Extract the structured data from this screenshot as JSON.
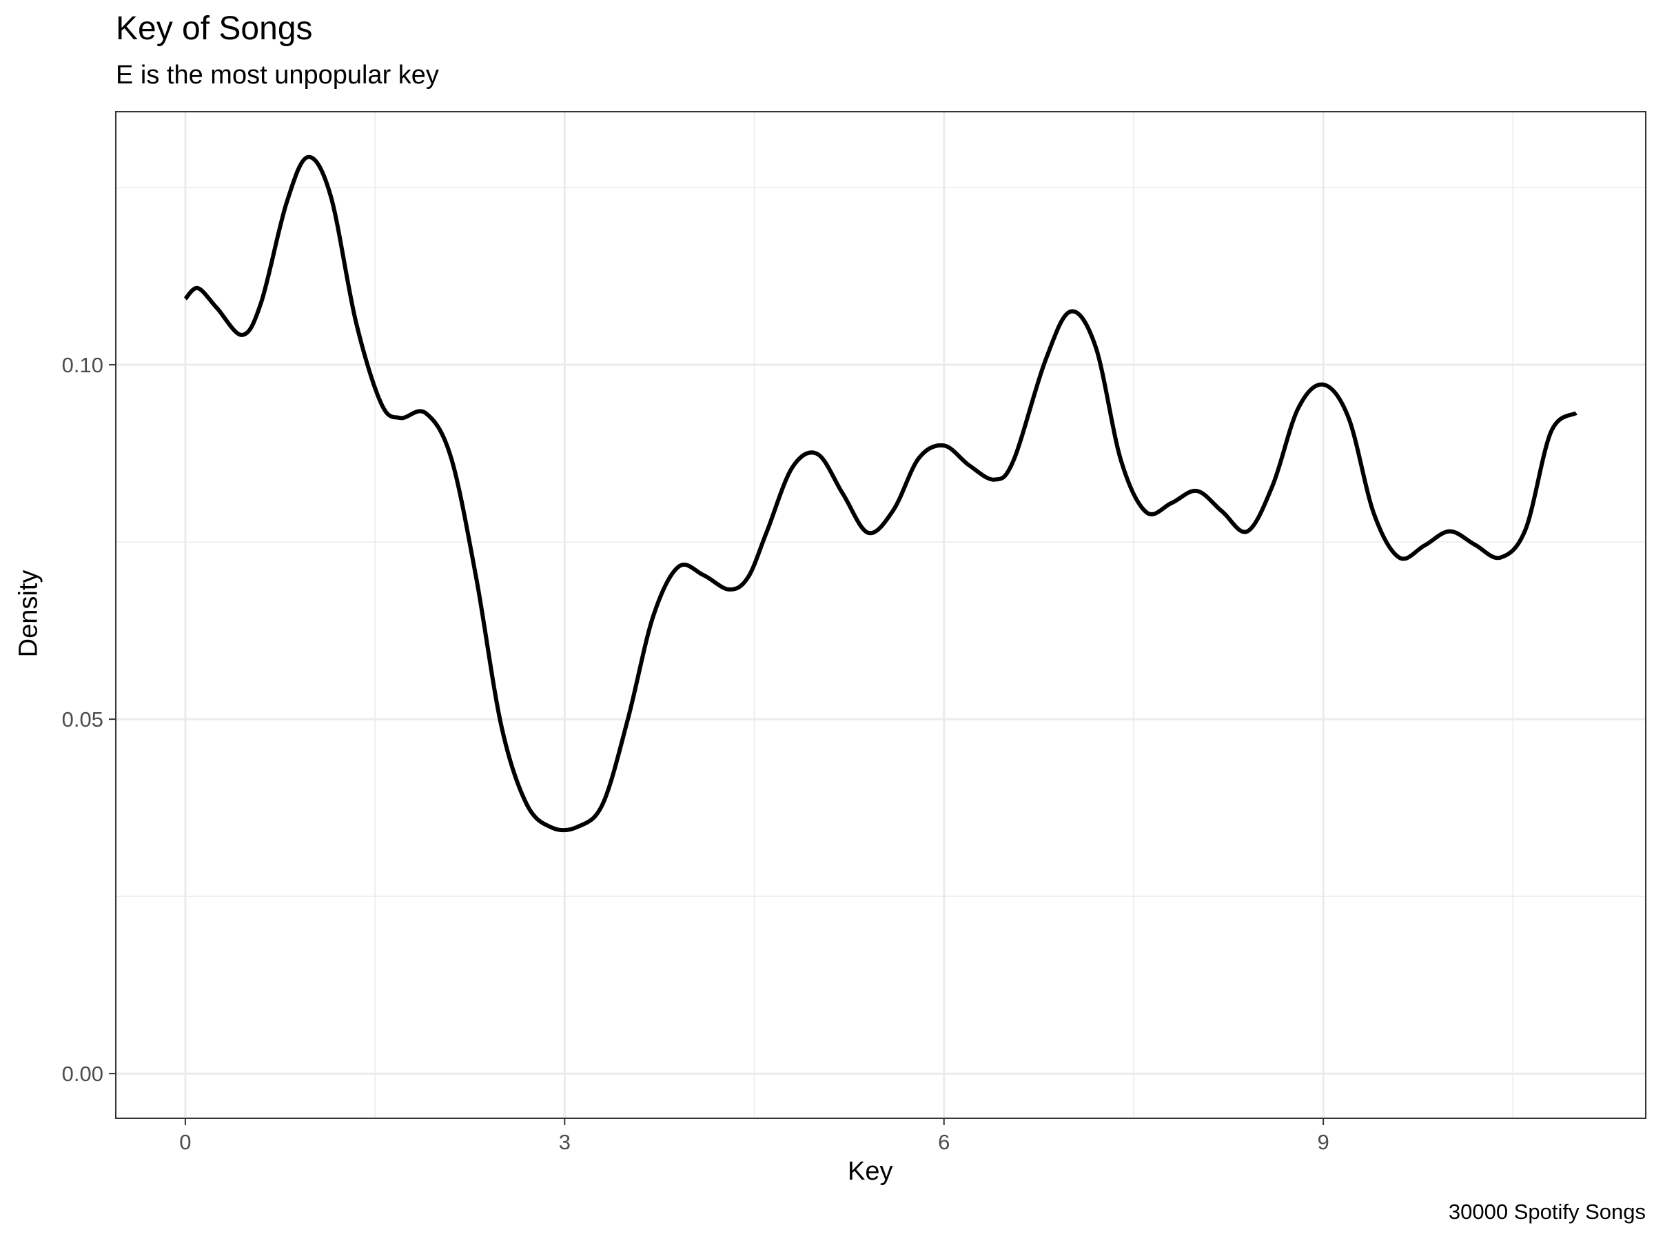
{
  "chart_data": {
    "type": "line",
    "title": "Key of Songs",
    "subtitle": "E is the most unpopular key",
    "caption": "30000 Spotify Songs",
    "xlabel": "Key",
    "ylabel": "Density",
    "xlim": [
      -0.55,
      11.55
    ],
    "ylim": [
      -0.0063,
      0.1357
    ],
    "x_ticks": [
      0,
      3,
      6,
      9
    ],
    "x_tick_labels": [
      "0",
      "3",
      "6",
      "9"
    ],
    "x_minor_ticks": [
      1.5,
      4.5,
      7.5,
      10.5
    ],
    "y_ticks": [
      0.0,
      0.05,
      0.1
    ],
    "y_tick_labels": [
      "0.00",
      "0.05",
      "0.10"
    ],
    "y_minor_ticks": [
      0.025,
      0.075,
      0.125
    ],
    "grid": true,
    "line_color": "#000000",
    "series": [
      {
        "x": [
          0,
          0.1,
          0.25,
          0.45,
          0.6,
          0.8,
          0.97,
          1.15,
          1.35,
          1.55,
          1.7,
          1.9,
          2.1,
          2.3,
          2.5,
          2.7,
          2.9,
          3.1,
          3.3,
          3.5,
          3.7,
          3.9,
          4.1,
          4.3,
          4.45,
          4.6,
          4.8,
          5.0,
          5.2,
          5.4,
          5.6,
          5.8,
          6.0,
          6.2,
          6.4,
          6.55,
          6.8,
          7.0,
          7.2,
          7.4,
          7.6,
          7.8,
          8.0,
          8.2,
          8.4,
          8.6,
          8.8,
          9.0,
          9.2,
          9.4,
          9.6,
          9.8,
          10.0,
          10.2,
          10.4,
          10.6,
          10.8,
          11.0
        ],
        "y": [
          0.1093,
          0.1108,
          0.108,
          0.1042,
          0.1088,
          0.1228,
          0.1293,
          0.1238,
          0.106,
          0.0945,
          0.0925,
          0.0932,
          0.087,
          0.07,
          0.049,
          0.038,
          0.0347,
          0.0348,
          0.038,
          0.05,
          0.0645,
          0.0715,
          0.0703,
          0.0683,
          0.07,
          0.0765,
          0.0855,
          0.0874,
          0.0818,
          0.0763,
          0.0795,
          0.0868,
          0.0886,
          0.0858,
          0.0838,
          0.0865,
          0.1005,
          0.1075,
          0.1025,
          0.0865,
          0.0792,
          0.0805,
          0.0822,
          0.0793,
          0.0765,
          0.083,
          0.0938,
          0.0972,
          0.0925,
          0.079,
          0.0728,
          0.0745,
          0.0765,
          0.0746,
          0.0728,
          0.0768,
          0.0905,
          0.0932
        ]
      }
    ]
  }
}
